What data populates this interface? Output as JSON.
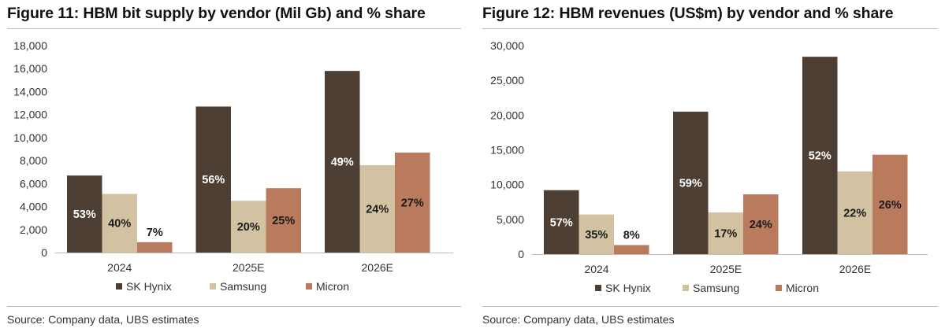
{
  "source_left": "Source: Company data, UBS estimates",
  "source_right": "Source: Company data, UBS estimates",
  "colors": {
    "sk_hynix": "#4d3f33",
    "samsung": "#d2c2a1",
    "micron": "#b97a5e"
  },
  "chart_data": [
    {
      "type": "bar",
      "title": "Figure 11: HBM bit supply by vendor (Mil Gb) and % share",
      "categories": [
        "2024",
        "2025E",
        "2026E"
      ],
      "series": [
        {
          "name": "SK Hynix",
          "values": [
            6700,
            12700,
            15800
          ],
          "labels": [
            "53%",
            "56%",
            "49%"
          ]
        },
        {
          "name": "Samsung",
          "values": [
            5100,
            4500,
            7600
          ],
          "labels": [
            "40%",
            "20%",
            "24%"
          ]
        },
        {
          "name": "Micron",
          "values": [
            900,
            5600,
            8700
          ],
          "labels": [
            "7%",
            "25%",
            "27%"
          ]
        }
      ],
      "ylim": [
        0,
        18000
      ],
      "yticks": [
        0,
        2000,
        4000,
        6000,
        8000,
        10000,
        12000,
        14000,
        16000,
        18000
      ],
      "ytick_labels": [
        "0",
        "2,000",
        "4,000",
        "6,000",
        "8,000",
        "10,000",
        "12,000",
        "14,000",
        "16,000",
        "18,000"
      ],
      "legend": "bottom"
    },
    {
      "type": "bar",
      "title": "Figure 12: HBM revenues (US$m) by vendor and % share",
      "categories": [
        "2024",
        "2025E",
        "2026E"
      ],
      "series": [
        {
          "name": "SK Hynix",
          "values": [
            9200,
            20500,
            28400
          ],
          "labels": [
            "57%",
            "59%",
            "52%"
          ]
        },
        {
          "name": "Samsung",
          "values": [
            5700,
            6000,
            11900
          ],
          "labels": [
            "35%",
            "17%",
            "22%"
          ]
        },
        {
          "name": "Micron",
          "values": [
            1300,
            8600,
            14300
          ],
          "labels": [
            "8%",
            "24%",
            "26%"
          ]
        }
      ],
      "ylim": [
        0,
        30000
      ],
      "yticks": [
        0,
        5000,
        10000,
        15000,
        20000,
        25000,
        30000
      ],
      "ytick_labels": [
        "0",
        "5,000",
        "10,000",
        "15,000",
        "20,000",
        "25,000",
        "30,000"
      ],
      "legend": "bottom"
    }
  ]
}
